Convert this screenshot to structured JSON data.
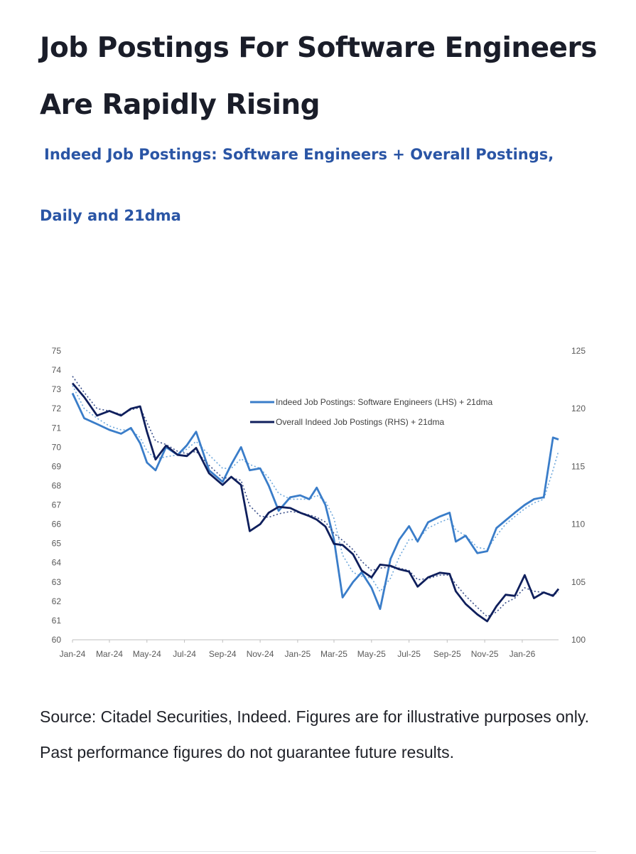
{
  "header": {
    "title": "Job Postings For Software Engineers Are Rapidly Rising",
    "subtitle_line1": "Indeed Job Postings: Software Engineers + Overall Postings,",
    "subtitle_line2": "Daily and 21dma"
  },
  "footer": {
    "source": "Source: Citadel Securities, Indeed. Figures are for illustrative purposes only. Past performance figures do not guarantee future results."
  },
  "colors": {
    "software": "#3a7dc9",
    "overall": "#0f1f5c",
    "software_ma": "#6fa8dc",
    "overall_ma": "#3a4f8a",
    "axis": "#bfbfbf"
  },
  "chart_data": {
    "type": "line",
    "x_tick_labels": [
      "Jan-24",
      "Mar-24",
      "May-24",
      "Jul-24",
      "Sep-24",
      "Nov-24",
      "Jan-25",
      "Mar-25",
      "May-25",
      "Jul-25",
      "Sep-25",
      "Nov-25",
      "Jan-26"
    ],
    "y_left": {
      "ticks": [
        "60",
        "61",
        "62",
        "63",
        "64",
        "65",
        "66",
        "67",
        "68",
        "69",
        "70",
        "71",
        "72",
        "73",
        "74",
        "75"
      ],
      "range": [
        60,
        75
      ]
    },
    "y_right": {
      "ticks": [
        "100",
        "105",
        "110",
        "115",
        "120",
        "125"
      ],
      "range": [
        100,
        125
      ]
    },
    "legend": [
      {
        "name": "Indeed Job Postings: Software Engineers (LHS) + 21dma",
        "color": "#3a7dc9"
      },
      {
        "name": "Overall Indeed Job Postings (RHS) + 21dma",
        "color": "#0f1f5c"
      }
    ],
    "series": [
      {
        "name": "Indeed Job Postings: Software Engineers (LHS) + 21dma",
        "axis": "left",
        "x": [
          "2024-01-01",
          "2024-01-20",
          "2024-02-10",
          "2024-03-01",
          "2024-03-20",
          "2024-04-05",
          "2024-04-20",
          "2024-05-01",
          "2024-05-15",
          "2024-06-01",
          "2024-06-20",
          "2024-07-05",
          "2024-07-20",
          "2024-08-10",
          "2024-09-01",
          "2024-09-15",
          "2024-10-01",
          "2024-10-15",
          "2024-11-01",
          "2024-11-15",
          "2024-12-01",
          "2024-12-20",
          "2025-01-05",
          "2025-01-20",
          "2025-02-01",
          "2025-02-15",
          "2025-03-01",
          "2025-03-15",
          "2025-04-01",
          "2025-04-15",
          "2025-05-01",
          "2025-05-15",
          "2025-06-01",
          "2025-06-15",
          "2025-07-01",
          "2025-07-15",
          "2025-08-01",
          "2025-08-20",
          "2025-09-05",
          "2025-09-15",
          "2025-10-01",
          "2025-10-20",
          "2025-11-05",
          "2025-11-20",
          "2025-12-05",
          "2025-12-20",
          "2026-01-05",
          "2026-01-20",
          "2026-02-05",
          "2026-02-20",
          "2026-03-01"
        ],
        "values": [
          72.8,
          71.5,
          71.2,
          70.9,
          70.7,
          71.0,
          70.2,
          69.2,
          68.8,
          70.0,
          69.6,
          70.1,
          70.8,
          68.8,
          68.2,
          69.1,
          70.0,
          68.8,
          68.9,
          68.0,
          66.7,
          67.4,
          67.5,
          67.3,
          67.9,
          67.0,
          65.2,
          62.2,
          63.0,
          63.5,
          62.7,
          61.6,
          64.2,
          65.2,
          65.9,
          65.1,
          66.1,
          66.4,
          66.6,
          65.1,
          65.4,
          64.5,
          64.6,
          65.8,
          66.2,
          66.6,
          67.0,
          67.3,
          67.4,
          70.5,
          70.4
        ],
        "ma21": [
          73.2,
          72.0,
          71.5,
          71.1,
          70.9,
          70.9,
          70.5,
          69.8,
          69.4,
          69.5,
          69.6,
          69.9,
          70.3,
          69.6,
          68.9,
          68.9,
          69.4,
          69.1,
          68.9,
          68.4,
          67.6,
          67.3,
          67.3,
          67.3,
          67.5,
          67.2,
          66.3,
          64.4,
          63.5,
          63.3,
          63.2,
          62.5,
          63.2,
          64.3,
          65.2,
          65.2,
          65.8,
          66.1,
          66.3,
          65.7,
          65.4,
          64.8,
          64.7,
          65.4,
          66.0,
          66.4,
          66.8,
          67.1,
          67.3,
          68.8,
          69.8
        ]
      },
      {
        "name": "Overall Indeed Job Postings (RHS) + 21dma",
        "axis": "right",
        "x": [
          "2024-01-01",
          "2024-01-20",
          "2024-02-10",
          "2024-03-01",
          "2024-03-20",
          "2024-04-05",
          "2024-04-20",
          "2024-05-01",
          "2024-05-15",
          "2024-06-01",
          "2024-06-20",
          "2024-07-05",
          "2024-07-20",
          "2024-08-10",
          "2024-09-01",
          "2024-09-15",
          "2024-10-01",
          "2024-10-15",
          "2024-11-01",
          "2024-11-15",
          "2024-12-01",
          "2024-12-20",
          "2025-01-05",
          "2025-01-20",
          "2025-02-01",
          "2025-02-15",
          "2025-03-01",
          "2025-03-15",
          "2025-04-01",
          "2025-04-15",
          "2025-05-01",
          "2025-05-15",
          "2025-06-01",
          "2025-06-15",
          "2025-07-01",
          "2025-07-15",
          "2025-08-01",
          "2025-08-20",
          "2025-09-05",
          "2025-09-15",
          "2025-10-01",
          "2025-10-20",
          "2025-11-05",
          "2025-11-20",
          "2025-12-05",
          "2025-12-20",
          "2026-01-05",
          "2026-01-20",
          "2026-02-05",
          "2026-02-20",
          "2026-03-01"
        ],
        "values": [
          122.2,
          121.0,
          119.4,
          119.8,
          119.4,
          120.0,
          120.2,
          118.0,
          115.6,
          116.8,
          116.0,
          115.9,
          116.6,
          114.4,
          113.4,
          114.1,
          113.4,
          109.4,
          110.0,
          111.0,
          111.5,
          111.4,
          111.0,
          110.7,
          110.4,
          109.8,
          108.3,
          108.2,
          107.4,
          106.0,
          105.4,
          106.5,
          106.4,
          106.1,
          105.9,
          104.6,
          105.4,
          105.8,
          105.7,
          104.2,
          103.1,
          102.2,
          101.6,
          102.9,
          103.9,
          103.8,
          105.6,
          103.6,
          104.1,
          103.8,
          104.4
        ],
        "ma21": [
          122.8,
          121.4,
          120.0,
          119.8,
          119.5,
          119.9,
          120.1,
          118.8,
          117.2,
          116.9,
          116.3,
          116.1,
          116.3,
          115.1,
          114.0,
          114.0,
          113.8,
          111.6,
          110.7,
          110.6,
          110.9,
          111.1,
          111.0,
          110.8,
          110.6,
          110.2,
          109.2,
          108.6,
          107.8,
          106.8,
          106.0,
          106.2,
          106.3,
          106.2,
          106.0,
          105.2,
          105.3,
          105.6,
          105.6,
          104.8,
          103.8,
          102.8,
          102.0,
          102.4,
          103.2,
          103.6,
          104.5,
          104.2,
          104.1,
          103.9,
          104.1
        ]
      }
    ]
  }
}
